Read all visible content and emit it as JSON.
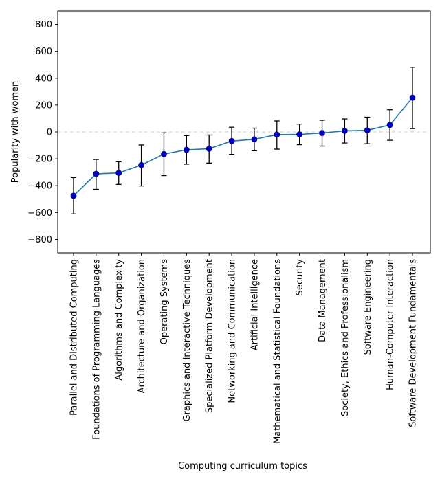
{
  "chart_data": {
    "type": "line",
    "xlabel": "Computing curriculum topics",
    "ylabel": "Popularity with women",
    "ylim": [
      -900,
      900
    ],
    "yticks": [
      -800,
      -600,
      -400,
      -200,
      0,
      200,
      400,
      600,
      800
    ],
    "ytick_labels": [
      "−800",
      "−600",
      "−400",
      "−200",
      "0",
      "200",
      "400",
      "600",
      "800"
    ],
    "categories": [
      "Parallel and Distributed Computing",
      "Foundations of Programming Languages",
      "Algorithms and Complexity",
      "Architecture and Organization",
      "Operating Systems",
      "Graphics and Interactive Techniques",
      "Specialized Platform Development",
      "Networking and Communication",
      "Artificial Intelligence",
      "Mathematical and Statistical Foundations",
      "Security",
      "Data Management",
      "Society, Ethics and Professionalism",
      "Software Engineering",
      "Human-Computer Interaction",
      "Software Development Fundamentals"
    ],
    "values": [
      -475,
      -312,
      -305,
      -247,
      -165,
      -133,
      -125,
      -68,
      -55,
      -20,
      -18,
      -8,
      8,
      12,
      52,
      255
    ],
    "error_low": [
      -610,
      -427,
      -390,
      -402,
      -325,
      -240,
      -232,
      -167,
      -140,
      -128,
      -95,
      -105,
      -82,
      -88,
      -62,
      25
    ],
    "error_high": [
      -340,
      -205,
      -222,
      -97,
      -7,
      -27,
      -23,
      35,
      28,
      82,
      58,
      87,
      97,
      110,
      165,
      482
    ],
    "reference_line": 0,
    "colors": {
      "line": "#1f77b4",
      "marker": "#0000cc",
      "errorbar": "#000000",
      "refline": "#cccccc"
    },
    "grid": false
  }
}
